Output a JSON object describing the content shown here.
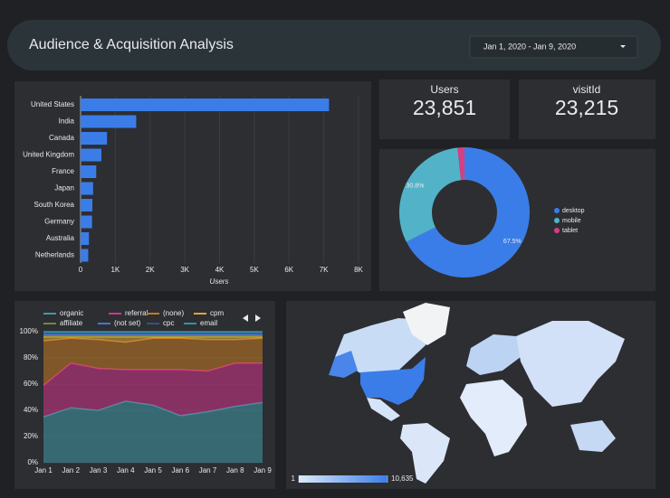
{
  "header": {
    "title": "Audience & Acquisition Analysis",
    "date_range": "Jan 1, 2020 - Jan 9, 2020"
  },
  "scorecards": [
    {
      "label": "Users",
      "value": 23851,
      "value_label": "23,851"
    },
    {
      "label": "visitId",
      "value": 23215,
      "value_label": "23,215"
    }
  ],
  "chart_data": [
    {
      "type": "bar",
      "orientation": "horizontal",
      "xlabel": "Users",
      "color": "#3b7de8",
      "grid": true,
      "categories": [
        "United States",
        "India",
        "Canada",
        "United Kingdom",
        "France",
        "Japan",
        "South Korea",
        "Germany",
        "Australia",
        "Netherlands"
      ],
      "values": [
        7150,
        1600,
        760,
        600,
        450,
        360,
        340,
        330,
        240,
        220
      ],
      "xlim": [
        0,
        8000
      ],
      "xticks": [
        0,
        {
          "value": 1000,
          "label": "1K"
        },
        {
          "value": 2000,
          "label": "2K"
        },
        {
          "value": 3000,
          "label": "3K"
        },
        {
          "value": 4000,
          "label": "4K"
        },
        {
          "value": 5000,
          "label": "5K"
        },
        {
          "value": 6000,
          "label": "6K"
        },
        {
          "value": 7000,
          "label": "7K"
        },
        {
          "value": 8000,
          "label": "8K"
        }
      ]
    },
    {
      "type": "pie",
      "donut": true,
      "categories": [
        "desktop",
        "mobile",
        "tablet"
      ],
      "values": [
        67.5,
        30.8,
        1.7
      ],
      "value_labels": [
        "67.5%",
        "30.8%",
        null
      ],
      "colors": [
        "#3b7de8",
        "#52b3c8",
        "#d63f82"
      ]
    },
    {
      "type": "area",
      "stacked": true,
      "categories": [
        "Jan 1",
        "Jan 2",
        "Jan 3",
        "Jan 4",
        "Jan 5",
        "Jan 6",
        "Jan 7",
        "Jan 8",
        "Jan 9"
      ],
      "ylim": [
        0,
        100
      ],
      "yticks": [
        {
          "value": 0,
          "label": "0%"
        },
        {
          "value": 20,
          "label": "20%"
        },
        {
          "value": 40,
          "label": "40%"
        },
        {
          "value": 60,
          "label": "60%"
        },
        {
          "value": 80,
          "label": "80%"
        },
        {
          "value": 100,
          "label": "100%"
        }
      ],
      "series": [
        {
          "name": "organic",
          "color": "#3e9aa6",
          "values": [
            35,
            42,
            40,
            47,
            44,
            36,
            39,
            43,
            46
          ]
        },
        {
          "name": "referral",
          "color": "#d0358a",
          "values": [
            24,
            34,
            32,
            24,
            27,
            35,
            31,
            33,
            30
          ]
        },
        {
          "name": "(none)",
          "color": "#c47a22",
          "values": [
            34,
            19,
            22,
            21,
            24,
            24,
            24,
            18,
            19
          ]
        },
        {
          "name": "cpm",
          "color": "#e0a53a",
          "values": [
            3,
            1,
            2,
            4,
            1,
            1,
            2,
            2,
            1
          ]
        },
        {
          "name": "affiliate",
          "color": "#6f8a3c",
          "values": [
            1,
            1,
            1,
            1,
            1,
            1,
            1,
            1,
            1
          ]
        },
        {
          "name": "(not set)",
          "color": "#4a74d6",
          "values": [
            1,
            1,
            1,
            1,
            1,
            1,
            1,
            1,
            1
          ]
        },
        {
          "name": "cpc",
          "color": "#3a4f86",
          "values": [
            1,
            1,
            1,
            1,
            1,
            1,
            1,
            1,
            1
          ]
        },
        {
          "name": "email",
          "color": "#2f93ad",
          "values": [
            1,
            1,
            1,
            1,
            1,
            1,
            1,
            1,
            1
          ]
        }
      ]
    },
    {
      "type": "map",
      "colors": [
        "#dde9f9",
        "#3b7de8"
      ],
      "colorscale_ticks": [
        1,
        {
          "value": 10635,
          "label": "10,635"
        }
      ]
    }
  ]
}
